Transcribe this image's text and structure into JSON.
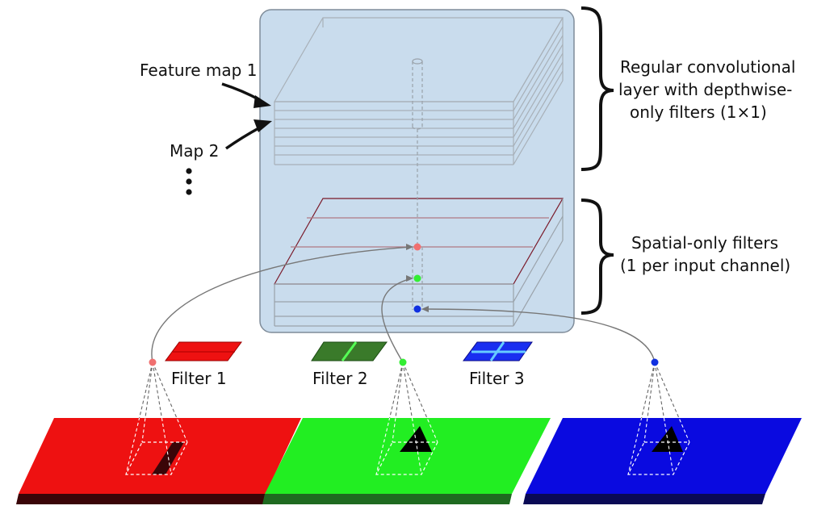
{
  "labels": {
    "feature_map_1": "Feature map 1",
    "map_2": "Map 2",
    "regular_line1": "Regular convolutional",
    "regular_line2": "layer with depthwise-",
    "regular_line3": "only filters (1×1)",
    "spatial_line1": "Spatial-only filters",
    "spatial_line2": "(1 per input channel)",
    "filter_1": "Filter 1",
    "filter_2": "Filter 2",
    "filter_3": "Filter 3"
  },
  "colors": {
    "panel_fill": "#c9dced",
    "panel_stroke": "#7f8c99",
    "red": "#ee1111",
    "red_dark": "#3a0508",
    "green": "#22ee22",
    "green_dark": "#1f6a20",
    "blue": "#0a0ae0",
    "blue_dark": "#0a0a55",
    "filter2_fill": "#3a7a2a",
    "filter2_line": "#55ff55",
    "filter3_fill": "#1a2ef0",
    "filter3_line": "#66ccff",
    "dot_red": "#f07070",
    "dot_green": "#33ee33",
    "dot_blue": "#1030e0"
  },
  "icons": {
    "arrow": "arrow-right-icon",
    "brace": "curly-brace-icon",
    "ellipsis": "vertical-ellipsis-icon"
  }
}
